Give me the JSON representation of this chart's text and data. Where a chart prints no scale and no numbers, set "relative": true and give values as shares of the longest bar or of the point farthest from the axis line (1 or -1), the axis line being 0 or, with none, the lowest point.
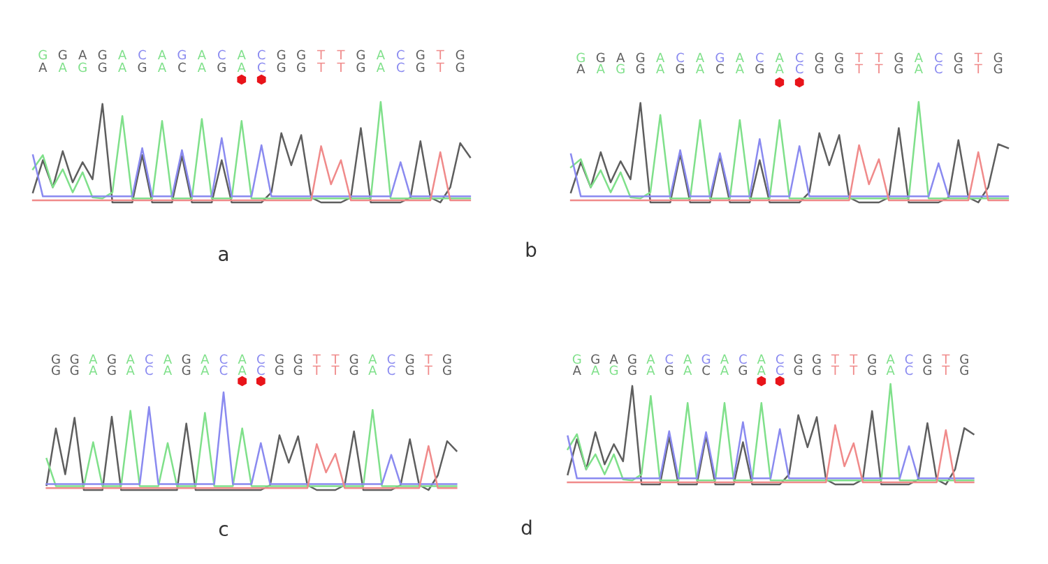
{
  "chart_data": [
    {
      "type": "line",
      "relative": true,
      "xlabel": "a",
      "legend": false,
      "grid": false,
      "marker": "none",
      "line_style": "solid",
      "categories": [
        null,
        null,
        null,
        null,
        null,
        null,
        null,
        null,
        null,
        null,
        null,
        null,
        null,
        null,
        null,
        null,
        null,
        null,
        null,
        null,
        null,
        null,
        null,
        null,
        null,
        null,
        null,
        null,
        null,
        null,
        null,
        null,
        null,
        null,
        null,
        null,
        null,
        null,
        null,
        null,
        null,
        null,
        null,
        null,
        null
      ],
      "annotations": [
        "GGAGACAGACACGGTTGACGTG",
        "AAGGAGACAGACGGTTGACGTG"
      ],
      "series": [
        {
          "color": "#5e5e5e",
          "values": [
            0.1,
            0.42,
            0.15,
            0.51,
            0.2,
            0.4,
            0.23,
            0.98,
            0,
            0,
            0,
            0.47,
            0,
            0,
            0,
            0.46,
            0,
            0,
            0,
            0.42,
            0,
            0,
            0,
            0,
            0.1,
            0.69,
            0.37,
            0.67,
            0.05,
            0,
            0,
            0,
            0.05,
            0.74,
            0,
            0,
            0,
            0,
            0.05,
            0.61,
            0.05,
            0,
            0.15,
            0.59,
            0.45
          ]
        },
        {
          "color": "#7fe08a",
          "values": [
            0.33,
            0.47,
            0.15,
            0.33,
            0.1,
            0.3,
            0.05,
            0.04,
            0.1,
            0.86,
            0.04,
            0.04,
            0.04,
            0.81,
            0.04,
            0.04,
            0.04,
            0.83,
            0.04,
            0.04,
            0.04,
            0.81,
            0.04,
            0.04,
            0.04,
            0.04,
            0.04,
            0.04,
            0.04,
            0.04,
            0.04,
            0.04,
            0.04,
            0.04,
            0.04,
            1.0,
            0.04,
            0.04,
            0.04,
            0.04,
            0.04,
            0.04,
            0.04,
            0.04,
            0.04
          ]
        },
        {
          "color": "#8a8af0",
          "values": [
            0.47,
            0.06,
            0.06,
            0.06,
            0.06,
            0.06,
            0.06,
            0.06,
            0.06,
            0.06,
            0.06,
            0.54,
            0.06,
            0.06,
            0.06,
            0.52,
            0.06,
            0.06,
            0.06,
            0.64,
            0.06,
            0.06,
            0.06,
            0.57,
            0.06,
            0.06,
            0.06,
            0.06,
            0.06,
            0.06,
            0.06,
            0.06,
            0.06,
            0.06,
            0.06,
            0.06,
            0.06,
            0.4,
            0.06,
            0.06,
            0.06,
            0.06,
            0.06,
            0.06,
            0.06
          ]
        },
        {
          "color": "#f08a8a",
          "values": [
            0.02,
            0.02,
            0.02,
            0.02,
            0.02,
            0.02,
            0.02,
            0.02,
            0.02,
            0.02,
            0.02,
            0.02,
            0.02,
            0.02,
            0.02,
            0.02,
            0.02,
            0.02,
            0.02,
            0.02,
            0.02,
            0.02,
            0.02,
            0.02,
            0.02,
            0.02,
            0.02,
            0.02,
            0.02,
            0.56,
            0.18,
            0.42,
            0.02,
            0.02,
            0.02,
            0.02,
            0.02,
            0.02,
            0.02,
            0.02,
            0.02,
            0.5,
            0.02,
            0.02,
            0.02
          ]
        }
      ]
    },
    {
      "type": "line",
      "relative": true,
      "xlabel": "b",
      "legend": false,
      "grid": false,
      "marker": "none",
      "line_style": "solid",
      "categories": [
        null,
        null,
        null,
        null,
        null,
        null,
        null,
        null,
        null,
        null,
        null,
        null,
        null,
        null,
        null,
        null,
        null,
        null,
        null,
        null,
        null,
        null,
        null,
        null,
        null,
        null,
        null,
        null,
        null,
        null,
        null,
        null,
        null,
        null,
        null,
        null,
        null,
        null,
        null,
        null,
        null,
        null,
        null,
        null,
        null
      ],
      "annotations": [
        "GGAGACAGACACGGTTGACGTG",
        "AAGGAGACAGACGGTTGACGTG"
      ],
      "series": [
        {
          "color": "#5e5e5e",
          "values": [
            0.1,
            0.4,
            0.15,
            0.5,
            0.2,
            0.41,
            0.23,
            0.99,
            0,
            0,
            0,
            0.48,
            0,
            0,
            0,
            0.46,
            0,
            0,
            0,
            0.42,
            0,
            0,
            0,
            0,
            0.1,
            0.69,
            0.37,
            0.67,
            0.05,
            0,
            0,
            0,
            0.05,
            0.74,
            0,
            0,
            0,
            0,
            0.05,
            0.62,
            0.05,
            0,
            0.15,
            0.58,
            0.54
          ]
        },
        {
          "color": "#7fe08a",
          "values": [
            0.35,
            0.43,
            0.15,
            0.32,
            0.1,
            0.3,
            0.05,
            0.04,
            0.1,
            0.87,
            0.04,
            0.04,
            0.04,
            0.82,
            0.04,
            0.04,
            0.04,
            0.82,
            0.04,
            0.04,
            0.04,
            0.82,
            0.04,
            0.04,
            0.04,
            0.04,
            0.04,
            0.04,
            0.04,
            0.04,
            0.04,
            0.04,
            0.04,
            0.04,
            0.04,
            1.0,
            0.04,
            0.04,
            0.04,
            0.04,
            0.04,
            0.04,
            0.04,
            0.04,
            0.04
          ]
        },
        {
          "color": "#8a8af0",
          "values": [
            0.48,
            0.06,
            0.06,
            0.06,
            0.06,
            0.06,
            0.06,
            0.06,
            0.06,
            0.06,
            0.06,
            0.52,
            0.06,
            0.06,
            0.06,
            0.49,
            0.06,
            0.06,
            0.06,
            0.63,
            0.06,
            0.06,
            0.06,
            0.56,
            0.06,
            0.06,
            0.06,
            0.06,
            0.06,
            0.06,
            0.06,
            0.06,
            0.06,
            0.06,
            0.06,
            0.06,
            0.06,
            0.39,
            0.06,
            0.06,
            0.06,
            0.06,
            0.06,
            0.06,
            0.06
          ]
        },
        {
          "color": "#f08a8a",
          "values": [
            0.02,
            0.02,
            0.02,
            0.02,
            0.02,
            0.02,
            0.02,
            0.02,
            0.02,
            0.02,
            0.02,
            0.02,
            0.02,
            0.02,
            0.02,
            0.02,
            0.02,
            0.02,
            0.02,
            0.02,
            0.02,
            0.02,
            0.02,
            0.02,
            0.02,
            0.02,
            0.02,
            0.02,
            0.02,
            0.57,
            0.18,
            0.43,
            0.02,
            0.02,
            0.02,
            0.02,
            0.02,
            0.02,
            0.02,
            0.02,
            0.02,
            0.5,
            0.02,
            0.02,
            0.02
          ]
        }
      ]
    },
    {
      "type": "line",
      "relative": true,
      "xlabel": "c",
      "legend": false,
      "grid": false,
      "marker": "none",
      "line_style": "solid",
      "categories": [
        null,
        null,
        null,
        null,
        null,
        null,
        null,
        null,
        null,
        null,
        null,
        null,
        null,
        null,
        null,
        null,
        null,
        null,
        null,
        null,
        null,
        null,
        null,
        null,
        null,
        null,
        null,
        null,
        null,
        null,
        null,
        null,
        null,
        null,
        null,
        null,
        null,
        null,
        null,
        null,
        null,
        null,
        null,
        null,
        null
      ],
      "annotations": [
        "GGAGACAGACACGGTTGACGTG",
        "GGAGACAGACACGGTTGACGTG"
      ],
      "series": [
        {
          "color": "#5e5e5e",
          "values": [
            0.05,
            0.63,
            0.16,
            0.74,
            0,
            0,
            0,
            0.75,
            0,
            0,
            0,
            0,
            0,
            0,
            0,
            0.68,
            0,
            0,
            0,
            0,
            0,
            0,
            0,
            0,
            0.05,
            0.56,
            0.28,
            0.55,
            0.05,
            0,
            0,
            0,
            0.05,
            0.6,
            0,
            0,
            0,
            0,
            0.05,
            0.52,
            0.05,
            0,
            0.15,
            0.5,
            0.4
          ]
        },
        {
          "color": "#7fe08a",
          "values": [
            0.32,
            0.04,
            0.04,
            0.04,
            0.04,
            0.49,
            0.04,
            0.04,
            0.04,
            0.81,
            0.04,
            0.04,
            0.04,
            0.48,
            0.04,
            0.04,
            0.04,
            0.79,
            0.04,
            0.04,
            0.04,
            0.63,
            0.04,
            0.04,
            0.04,
            0.04,
            0.04,
            0.04,
            0.04,
            0.04,
            0.04,
            0.04,
            0.04,
            0.04,
            0.04,
            0.82,
            0.04,
            0.04,
            0.04,
            0.04,
            0.04,
            0.04,
            0.04,
            0.04,
            0.04
          ]
        },
        {
          "color": "#8a8af0",
          "values": [
            0.06,
            0.06,
            0.06,
            0.06,
            0.06,
            0.06,
            0.06,
            0.06,
            0.06,
            0.06,
            0.06,
            0.85,
            0.06,
            0.06,
            0.06,
            0.06,
            0.06,
            0.06,
            0.06,
            1.0,
            0.06,
            0.06,
            0.06,
            0.48,
            0.06,
            0.06,
            0.06,
            0.06,
            0.06,
            0.06,
            0.06,
            0.06,
            0.06,
            0.06,
            0.06,
            0.06,
            0.06,
            0.36,
            0.06,
            0.06,
            0.06,
            0.06,
            0.06,
            0.06,
            0.06
          ]
        },
        {
          "color": "#f08a8a",
          "values": [
            0.02,
            0.02,
            0.02,
            0.02,
            0.02,
            0.02,
            0.02,
            0.02,
            0.02,
            0.02,
            0.02,
            0.02,
            0.02,
            0.02,
            0.02,
            0.02,
            0.02,
            0.02,
            0.02,
            0.02,
            0.02,
            0.02,
            0.02,
            0.02,
            0.02,
            0.02,
            0.02,
            0.02,
            0.02,
            0.47,
            0.18,
            0.37,
            0.02,
            0.02,
            0.02,
            0.02,
            0.02,
            0.02,
            0.02,
            0.02,
            0.02,
            0.45,
            0.02,
            0.02,
            0.02
          ]
        }
      ]
    },
    {
      "type": "line",
      "relative": true,
      "xlabel": "d",
      "legend": false,
      "grid": false,
      "marker": "none",
      "line_style": "solid",
      "categories": [
        null,
        null,
        null,
        null,
        null,
        null,
        null,
        null,
        null,
        null,
        null,
        null,
        null,
        null,
        null,
        null,
        null,
        null,
        null,
        null,
        null,
        null,
        null,
        null,
        null,
        null,
        null,
        null,
        null,
        null,
        null,
        null,
        null,
        null,
        null,
        null,
        null,
        null,
        null,
        null,
        null,
        null,
        null,
        null,
        null
      ],
      "annotations": [
        "GGAGACAGACACGGTTGACGTG",
        "AAGGAGACAGACGGTTGACGTG"
      ],
      "series": [
        {
          "color": "#5e5e5e",
          "values": [
            0.1,
            0.45,
            0.15,
            0.52,
            0.2,
            0.4,
            0.23,
            0.98,
            0,
            0,
            0,
            0.47,
            0,
            0,
            0,
            0.48,
            0,
            0,
            0,
            0.42,
            0,
            0,
            0,
            0,
            0.1,
            0.69,
            0.37,
            0.67,
            0.05,
            0,
            0,
            0,
            0.05,
            0.73,
            0,
            0,
            0,
            0,
            0.05,
            0.61,
            0.05,
            0,
            0.15,
            0.56,
            0.5
          ]
        },
        {
          "color": "#7fe08a",
          "values": [
            0.35,
            0.5,
            0.15,
            0.3,
            0.1,
            0.3,
            0.05,
            0.04,
            0.1,
            0.88,
            0.04,
            0.04,
            0.04,
            0.81,
            0.04,
            0.04,
            0.04,
            0.81,
            0.04,
            0.04,
            0.04,
            0.81,
            0.04,
            0.04,
            0.04,
            0.04,
            0.04,
            0.04,
            0.04,
            0.04,
            0.04,
            0.04,
            0.04,
            0.04,
            0.04,
            1.0,
            0.04,
            0.04,
            0.04,
            0.04,
            0.04,
            0.04,
            0.04,
            0.04,
            0.04
          ]
        },
        {
          "color": "#8a8af0",
          "values": [
            0.48,
            0.06,
            0.06,
            0.06,
            0.06,
            0.06,
            0.06,
            0.06,
            0.06,
            0.06,
            0.06,
            0.53,
            0.06,
            0.06,
            0.06,
            0.52,
            0.06,
            0.06,
            0.06,
            0.62,
            0.06,
            0.06,
            0.06,
            0.55,
            0.06,
            0.06,
            0.06,
            0.06,
            0.06,
            0.06,
            0.06,
            0.06,
            0.06,
            0.06,
            0.06,
            0.06,
            0.06,
            0.38,
            0.06,
            0.06,
            0.06,
            0.06,
            0.06,
            0.06,
            0.06
          ]
        },
        {
          "color": "#f08a8a",
          "values": [
            0.02,
            0.02,
            0.02,
            0.02,
            0.02,
            0.02,
            0.02,
            0.02,
            0.02,
            0.02,
            0.02,
            0.02,
            0.02,
            0.02,
            0.02,
            0.02,
            0.02,
            0.02,
            0.02,
            0.02,
            0.02,
            0.02,
            0.02,
            0.02,
            0.02,
            0.02,
            0.02,
            0.02,
            0.02,
            0.59,
            0.18,
            0.41,
            0.02,
            0.02,
            0.02,
            0.02,
            0.02,
            0.02,
            0.02,
            0.02,
            0.02,
            0.54,
            0.02,
            0.02,
            0.02
          ]
        }
      ]
    }
  ]
}
